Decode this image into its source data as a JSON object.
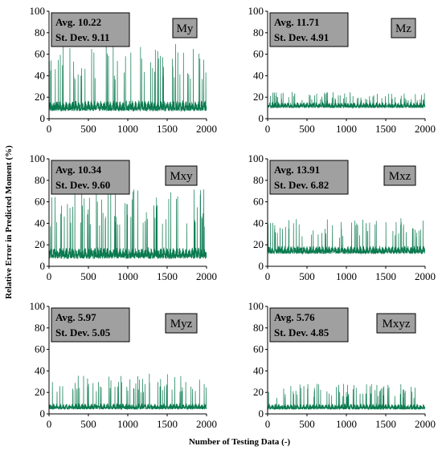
{
  "figure": {
    "xlabel": "Number of Testing Data (-)",
    "ylabel": "Relative Error in Predicted Moment (%)"
  },
  "chart_data": [
    {
      "type": "line",
      "title": "My",
      "avg_label": "Avg. 10.22",
      "std_label": "St. Dev. 9.11",
      "xlim": [
        0,
        2000
      ],
      "ylim": [
        0,
        100
      ],
      "xticks": [
        "0",
        "500",
        "1000",
        "1500",
        "2000"
      ],
      "yticks": [
        "0",
        "20",
        "40",
        "60",
        "80",
        "100"
      ],
      "series": [
        {
          "mean": 10.22,
          "std": 9.11,
          "peak_max": 70,
          "n": 2000,
          "color": "#0a7a4f"
        }
      ]
    },
    {
      "type": "line",
      "title": "Mz",
      "avg_label": "Avg. 11.71",
      "std_label": "St. Dev. 4.91",
      "xlim": [
        0,
        2000
      ],
      "ylim": [
        0,
        100
      ],
      "xticks": [
        "0",
        "500",
        "1000",
        "1500",
        "2000"
      ],
      "yticks": [
        "0",
        "20",
        "40",
        "60",
        "80",
        "100"
      ],
      "series": [
        {
          "mean": 11.71,
          "std": 4.91,
          "peak_max": 25,
          "n": 2000,
          "color": "#0a7a4f"
        }
      ]
    },
    {
      "type": "line",
      "title": "Mxy",
      "avg_label": "Avg. 10.34",
      "std_label": "St. Dev. 9.60",
      "xlim": [
        0,
        2000
      ],
      "ylim": [
        0,
        100
      ],
      "xticks": [
        "0",
        "500",
        "1000",
        "1500",
        "2000"
      ],
      "yticks": [
        "0",
        "20",
        "40",
        "60",
        "80",
        "100"
      ],
      "series": [
        {
          "mean": 10.34,
          "std": 9.6,
          "peak_max": 72,
          "n": 2000,
          "color": "#0a7a4f"
        }
      ]
    },
    {
      "type": "line",
      "title": "Mxz",
      "avg_label": "Avg. 13.91",
      "std_label": "St. Dev. 6.82",
      "xlim": [
        0,
        2000
      ],
      "ylim": [
        0,
        100
      ],
      "xticks": [
        "0",
        "500",
        "1000",
        "1500",
        "2000"
      ],
      "yticks": [
        "0",
        "20",
        "40",
        "60",
        "80",
        "100"
      ],
      "series": [
        {
          "mean": 13.91,
          "std": 6.82,
          "peak_max": 45,
          "n": 2000,
          "color": "#0a7a4f"
        }
      ]
    },
    {
      "type": "line",
      "title": "Myz",
      "avg_label": "Avg. 5.97",
      "std_label": "St. Dev. 5.05",
      "xlim": [
        0,
        2000
      ],
      "ylim": [
        0,
        100
      ],
      "xticks": [
        "0",
        "500",
        "1000",
        "1500",
        "2000"
      ],
      "yticks": [
        "0",
        "20",
        "40",
        "60",
        "80",
        "100"
      ],
      "series": [
        {
          "mean": 5.97,
          "std": 5.05,
          "peak_max": 38,
          "n": 2000,
          "color": "#0a7a4f"
        }
      ]
    },
    {
      "type": "line",
      "title": "Mxyz",
      "avg_label": "Avg. 5.76",
      "std_label": "St. Dev. 4.85",
      "xlim": [
        0,
        2000
      ],
      "ylim": [
        0,
        100
      ],
      "xticks": [
        "0",
        "500",
        "1000",
        "1500",
        "2000"
      ],
      "yticks": [
        "0",
        "20",
        "40",
        "60",
        "80",
        "100"
      ],
      "series": [
        {
          "mean": 5.76,
          "std": 4.85,
          "peak_max": 28,
          "n": 2000,
          "color": "#0a7a4f"
        }
      ]
    }
  ]
}
